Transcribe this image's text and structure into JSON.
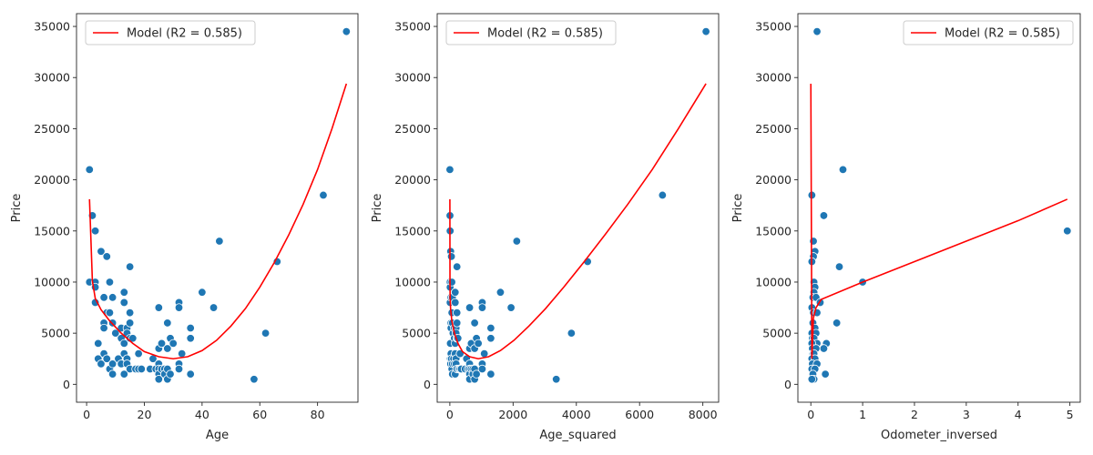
{
  "colors": {
    "points": "#1f77b4",
    "model": "#ff0000",
    "frame": "#262626"
  },
  "chart_data": [
    {
      "type": "scatter",
      "xlabel": "Age",
      "ylabel": "Price",
      "xlim": [
        -3.5,
        94
      ],
      "ylim": [
        -1750,
        36250
      ],
      "xticks": [
        0,
        20,
        40,
        60,
        80
      ],
      "yticks": [
        0,
        5000,
        10000,
        15000,
        20000,
        25000,
        30000,
        35000
      ],
      "legend": {
        "label": "Model (R2 = 0.585)",
        "position": "top-left"
      },
      "points": [
        [
          1,
          21000
        ],
        [
          1,
          10000
        ],
        [
          2,
          16500
        ],
        [
          3,
          15000
        ],
        [
          3,
          10000
        ],
        [
          3,
          9500
        ],
        [
          3,
          8000
        ],
        [
          4,
          4000
        ],
        [
          4,
          2500
        ],
        [
          5,
          13000
        ],
        [
          5,
          2000
        ],
        [
          6,
          8500
        ],
        [
          6,
          6000
        ],
        [
          6,
          5500
        ],
        [
          6,
          3000
        ],
        [
          7,
          12500
        ],
        [
          7,
          7000
        ],
        [
          7,
          2500
        ],
        [
          8,
          10000
        ],
        [
          8,
          7000
        ],
        [
          8,
          1500
        ],
        [
          9,
          8500
        ],
        [
          9,
          6000
        ],
        [
          9,
          2000
        ],
        [
          9,
          1000
        ],
        [
          10,
          5000
        ],
        [
          11,
          2500
        ],
        [
          12,
          5500
        ],
        [
          12,
          4500
        ],
        [
          12,
          2000
        ],
        [
          13,
          9000
        ],
        [
          13,
          8000
        ],
        [
          13,
          4000
        ],
        [
          13,
          3000
        ],
        [
          13,
          1000
        ],
        [
          14,
          5500
        ],
        [
          14,
          5000
        ],
        [
          14,
          2500
        ],
        [
          14,
          2000
        ],
        [
          15,
          11500
        ],
        [
          15,
          7000
        ],
        [
          15,
          6000
        ],
        [
          15,
          4500
        ],
        [
          15,
          1500
        ],
        [
          16,
          4500
        ],
        [
          17,
          1500
        ],
        [
          18,
          3000
        ],
        [
          18,
          1500
        ],
        [
          19,
          1500
        ],
        [
          22,
          1500
        ],
        [
          23,
          2500
        ],
        [
          24,
          1500
        ],
        [
          25,
          7500
        ],
        [
          25,
          3500
        ],
        [
          25,
          2000
        ],
        [
          25,
          1500
        ],
        [
          25,
          1000
        ],
        [
          25,
          500
        ],
        [
          26,
          4000
        ],
        [
          26,
          1500
        ],
        [
          27,
          1500
        ],
        [
          27,
          1000
        ],
        [
          28,
          6000
        ],
        [
          28,
          3500
        ],
        [
          28,
          1500
        ],
        [
          28,
          500
        ],
        [
          29,
          4500
        ],
        [
          29,
          1000
        ],
        [
          30,
          4000
        ],
        [
          32,
          8000
        ],
        [
          32,
          7500
        ],
        [
          32,
          2000
        ],
        [
          32,
          1500
        ],
        [
          33,
          3000
        ],
        [
          36,
          5500
        ],
        [
          36,
          4500
        ],
        [
          36,
          1000
        ],
        [
          40,
          9000
        ],
        [
          44,
          7500
        ],
        [
          46,
          14000
        ],
        [
          58,
          500
        ],
        [
          62,
          5000
        ],
        [
          66,
          12000
        ],
        [
          82,
          18500
        ],
        [
          90,
          34500
        ]
      ],
      "model_curve": [
        [
          1,
          18100
        ],
        [
          2,
          10100
        ],
        [
          3,
          8400
        ],
        [
          5,
          7300
        ],
        [
          8,
          6200
        ],
        [
          12,
          5000
        ],
        [
          16,
          4000
        ],
        [
          20,
          3200
        ],
        [
          25,
          2700
        ],
        [
          30,
          2500
        ],
        [
          35,
          2700
        ],
        [
          40,
          3300
        ],
        [
          45,
          4300
        ],
        [
          50,
          5700
        ],
        [
          55,
          7400
        ],
        [
          60,
          9500
        ],
        [
          65,
          11900
        ],
        [
          70,
          14600
        ],
        [
          75,
          17600
        ],
        [
          80,
          21000
        ],
        [
          85,
          25000
        ],
        [
          90,
          29400
        ]
      ]
    },
    {
      "type": "scatter",
      "xlabel": "Age_squared",
      "ylabel": "Price",
      "xlim": [
        -400,
        8500
      ],
      "ylim": [
        -1750,
        36250
      ],
      "xticks": [
        0,
        2000,
        4000,
        6000,
        8000
      ],
      "yticks": [
        0,
        5000,
        10000,
        15000,
        20000,
        25000,
        30000,
        35000
      ],
      "legend": {
        "label": "Model (R2 = 0.585)",
        "position": "top-left"
      },
      "points": [
        [
          1,
          21000
        ],
        [
          1,
          10000
        ],
        [
          4,
          16500
        ],
        [
          9,
          15000
        ],
        [
          9,
          10000
        ],
        [
          9,
          9500
        ],
        [
          9,
          8000
        ],
        [
          16,
          4000
        ],
        [
          16,
          2500
        ],
        [
          25,
          13000
        ],
        [
          25,
          2000
        ],
        [
          36,
          8500
        ],
        [
          36,
          6000
        ],
        [
          36,
          5500
        ],
        [
          36,
          3000
        ],
        [
          49,
          12500
        ],
        [
          49,
          7000
        ],
        [
          49,
          2500
        ],
        [
          64,
          10000
        ],
        [
          64,
          7000
        ],
        [
          64,
          1500
        ],
        [
          81,
          8500
        ],
        [
          81,
          6000
        ],
        [
          81,
          2000
        ],
        [
          81,
          1000
        ],
        [
          100,
          5000
        ],
        [
          121,
          2500
        ],
        [
          144,
          5500
        ],
        [
          144,
          4500
        ],
        [
          144,
          2000
        ],
        [
          169,
          9000
        ],
        [
          169,
          8000
        ],
        [
          169,
          4000
        ],
        [
          169,
          3000
        ],
        [
          169,
          1000
        ],
        [
          196,
          5500
        ],
        [
          196,
          5000
        ],
        [
          196,
          2500
        ],
        [
          196,
          2000
        ],
        [
          225,
          11500
        ],
        [
          225,
          7000
        ],
        [
          225,
          6000
        ],
        [
          225,
          4500
        ],
        [
          225,
          1500
        ],
        [
          256,
          4500
        ],
        [
          289,
          1500
        ],
        [
          324,
          3000
        ],
        [
          324,
          1500
        ],
        [
          361,
          1500
        ],
        [
          484,
          1500
        ],
        [
          529,
          2500
        ],
        [
          576,
          1500
        ],
        [
          625,
          7500
        ],
        [
          625,
          3500
        ],
        [
          625,
          2000
        ],
        [
          625,
          1500
        ],
        [
          625,
          1000
        ],
        [
          625,
          500
        ],
        [
          676,
          4000
        ],
        [
          676,
          1500
        ],
        [
          729,
          1500
        ],
        [
          729,
          1000
        ],
        [
          784,
          6000
        ],
        [
          784,
          3500
        ],
        [
          784,
          1500
        ],
        [
          784,
          500
        ],
        [
          841,
          4500
        ],
        [
          841,
          1000
        ],
        [
          900,
          4000
        ],
        [
          1024,
          8000
        ],
        [
          1024,
          7500
        ],
        [
          1024,
          2000
        ],
        [
          1024,
          1500
        ],
        [
          1089,
          3000
        ],
        [
          1296,
          5500
        ],
        [
          1296,
          4500
        ],
        [
          1296,
          1000
        ],
        [
          1600,
          9000
        ],
        [
          1936,
          7500
        ],
        [
          2116,
          14000
        ],
        [
          3364,
          500
        ],
        [
          3844,
          5000
        ],
        [
          4356,
          12000
        ],
        [
          6724,
          18500
        ],
        [
          8100,
          34500
        ]
      ],
      "model_curve": [
        [
          1,
          18100
        ],
        [
          4,
          10100
        ],
        [
          9,
          8400
        ],
        [
          25,
          7300
        ],
        [
          64,
          6200
        ],
        [
          144,
          5000
        ],
        [
          256,
          4000
        ],
        [
          400,
          3200
        ],
        [
          625,
          2700
        ],
        [
          900,
          2500
        ],
        [
          1225,
          2700
        ],
        [
          1600,
          3300
        ],
        [
          2025,
          4300
        ],
        [
          2500,
          5700
        ],
        [
          3025,
          7400
        ],
        [
          3600,
          9500
        ],
        [
          4225,
          11900
        ],
        [
          4900,
          14600
        ],
        [
          5625,
          17600
        ],
        [
          6400,
          21000
        ],
        [
          7225,
          25000
        ],
        [
          8100,
          29400
        ]
      ]
    },
    {
      "type": "scatter",
      "xlabel": "Odometer_inversed",
      "ylabel": "Price",
      "xlim": [
        -0.25,
        5.2
      ],
      "ylim": [
        -1750,
        36250
      ],
      "xticks": [
        0,
        1,
        2,
        3,
        4,
        5
      ],
      "yticks": [
        0,
        5000,
        10000,
        15000,
        20000,
        25000,
        30000,
        35000
      ],
      "legend": {
        "label": "Model (R2 = 0.585)",
        "position": "top-right"
      },
      "points": [
        [
          0.12,
          34500
        ],
        [
          0.62,
          21000
        ],
        [
          0.02,
          18500
        ],
        [
          0.25,
          16500
        ],
        [
          4.95,
          15000
        ],
        [
          0.05,
          14000
        ],
        [
          0.08,
          13000
        ],
        [
          0.05,
          12500
        ],
        [
          0.02,
          12000
        ],
        [
          0.55,
          11500
        ],
        [
          0.06,
          10000
        ],
        [
          1.0,
          10000
        ],
        [
          0.08,
          9500
        ],
        [
          0.06,
          9000
        ],
        [
          0.04,
          8500
        ],
        [
          0.1,
          8500
        ],
        [
          0.18,
          8000
        ],
        [
          0.02,
          7500
        ],
        [
          0.05,
          7000
        ],
        [
          0.12,
          7000
        ],
        [
          0.5,
          6000
        ],
        [
          0.04,
          6000
        ],
        [
          0.08,
          5500
        ],
        [
          0.02,
          5000
        ],
        [
          0.1,
          5000
        ],
        [
          0.03,
          4500
        ],
        [
          0.06,
          4500
        ],
        [
          0.12,
          4000
        ],
        [
          0.02,
          4000
        ],
        [
          0.3,
          4000
        ],
        [
          0.03,
          3500
        ],
        [
          0.25,
          3500
        ],
        [
          0.1,
          3500
        ],
        [
          0.04,
          3000
        ],
        [
          0.06,
          3000
        ],
        [
          0.02,
          2500
        ],
        [
          0.08,
          2500
        ],
        [
          0.03,
          2000
        ],
        [
          0.12,
          2000
        ],
        [
          0.05,
          1500
        ],
        [
          0.02,
          1500
        ],
        [
          0.08,
          1500
        ],
        [
          0.04,
          1000
        ],
        [
          0.28,
          1000
        ],
        [
          0.06,
          500
        ],
        [
          0.02,
          500
        ]
      ],
      "model_curve": [
        [
          0.0,
          29400
        ],
        [
          0.02,
          2500
        ],
        [
          0.05,
          6500
        ],
        [
          0.1,
          7500
        ],
        [
          0.2,
          8300
        ],
        [
          1.0,
          10000
        ],
        [
          2.0,
          12000
        ],
        [
          3.0,
          14000
        ],
        [
          4.0,
          16000
        ],
        [
          4.95,
          18100
        ]
      ]
    }
  ]
}
